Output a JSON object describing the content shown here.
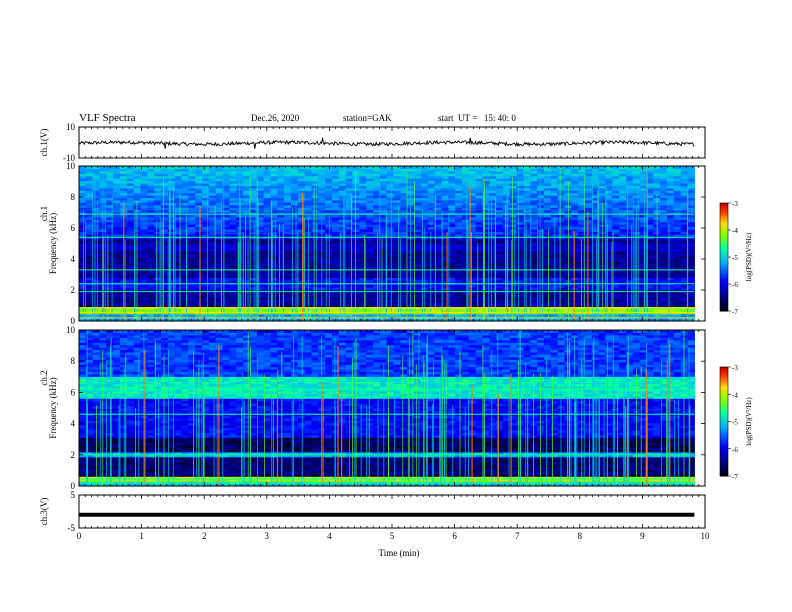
{
  "header": {
    "title": "VLF Spectra",
    "date": "Dec.26, 2020",
    "station": "station=GAK",
    "start_ut": "start  UT =   15: 40: 0"
  },
  "chart_data": [
    {
      "type": "line",
      "panel": "ch1-waveform",
      "ylabel": "ch.1(V)",
      "ylim": [
        -10,
        10
      ],
      "yticks": [
        "10",
        "-10"
      ],
      "xlim": [
        0,
        10
      ],
      "series": [
        {
          "values_description_free": true,
          "baseline": 0,
          "noise_amplitude": 1.5
        }
      ]
    },
    {
      "type": "heatmap",
      "panel": "ch1-spectrogram",
      "ylabel_top": "ch.1",
      "ylabel": "Frequency (kHz)",
      "ylim": [
        0,
        10
      ],
      "yticks": [
        "0",
        "2",
        "4",
        "6",
        "8",
        "10"
      ],
      "xlim": [
        0,
        10
      ],
      "data_end_min": 9.83,
      "colorbar": {
        "label": "log(PSD)(V²/Hz)",
        "range": [
          -7,
          -3
        ],
        "ticks": [
          "-3",
          "-4",
          "-5",
          "-6",
          "-7"
        ]
      },
      "bands_khz": {
        "strong": [
          0.4,
          1.0
        ],
        "hiss": [
          5.5,
          10
        ]
      }
    },
    {
      "type": "heatmap",
      "panel": "ch2-spectrogram",
      "ylabel_top": "ch.2",
      "ylabel": "Frequency (kHz)",
      "ylim": [
        0,
        10
      ],
      "yticks": [
        "0",
        "2",
        "4",
        "6",
        "8",
        "10"
      ],
      "xlim": [
        0,
        10
      ],
      "data_end_min": 9.83,
      "colorbar": {
        "label": "log(PSD)(V²/Hz)",
        "range": [
          -7,
          -3
        ],
        "ticks": [
          "-3",
          "-4",
          "-5",
          "-6",
          "-7"
        ]
      },
      "bands_khz": {
        "strong": [
          0.3,
          0.6
        ],
        "hiss": [
          5.8,
          6.8
        ]
      }
    },
    {
      "type": "line",
      "panel": "ch3-waveform",
      "ylabel": "ch.3(V)",
      "ylim": [
        -5,
        5
      ],
      "yticks": [
        "5",
        "-5"
      ],
      "xlim": [
        0,
        10
      ],
      "xlabel": "Time (min)",
      "xticks": [
        "0",
        "1",
        "2",
        "3",
        "4",
        "5",
        "6",
        "7",
        "8",
        "9",
        "10"
      ],
      "series": [
        {
          "baseline": -1
        }
      ]
    }
  ]
}
